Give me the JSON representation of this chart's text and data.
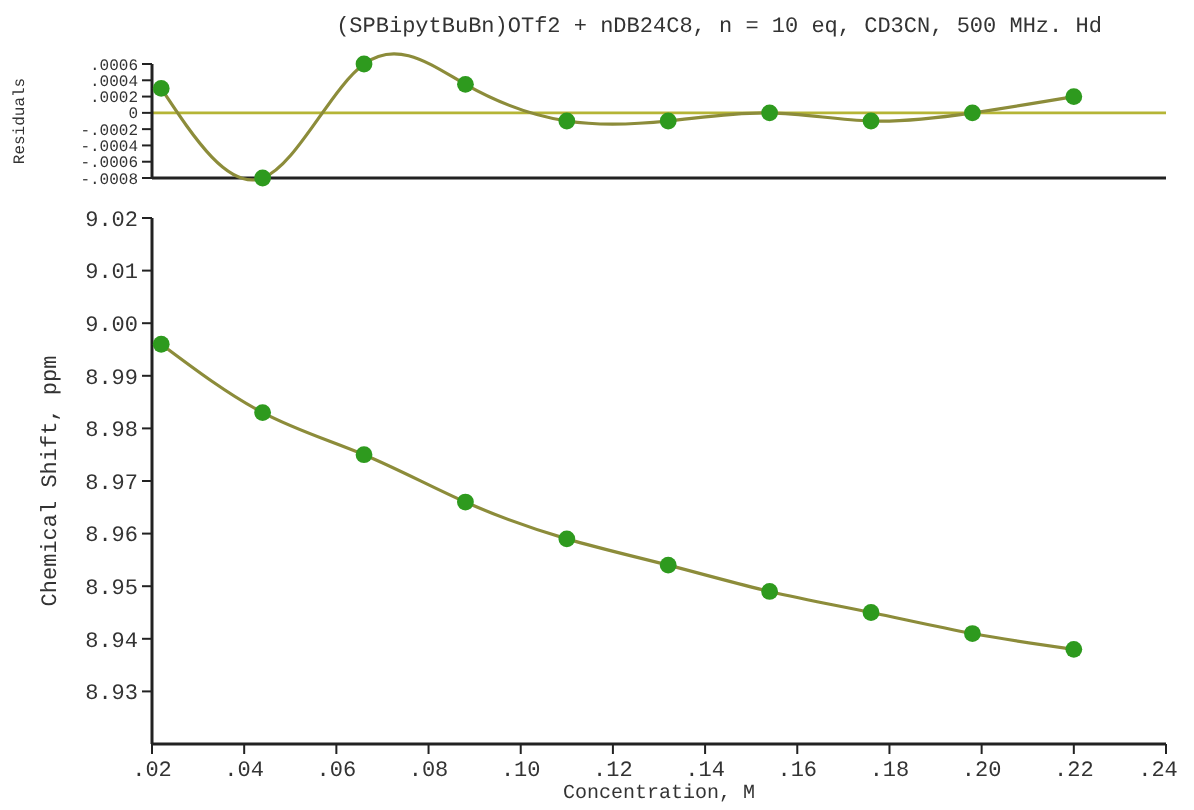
{
  "chart_data": [
    {
      "type": "line",
      "title": "(SPBipytBuBn)OTf2 + nDB24C8, n = 10 eq, CD3CN, 500 MHz. Hd",
      "ylabel": "Residuals",
      "xlim": [
        0.02,
        0.24
      ],
      "ylim": [
        -0.0008,
        0.0006
      ],
      "yticks": [
        {
          "value": -0.0008,
          "label": "-.0008"
        },
        {
          "value": -0.0006,
          "label": "-.0006"
        },
        {
          "value": -0.0004,
          "label": "-.0004"
        },
        {
          "value": -0.0002,
          "label": "-.0002"
        },
        {
          "value": 0,
          "label": "0"
        },
        {
          "value": 0.0002,
          "label": ".0002"
        },
        {
          "value": 0.0004,
          "label": ".0004"
        },
        {
          "value": 0.0006,
          "label": ".0006"
        }
      ],
      "tick_labels": "y",
      "grid": false,
      "x": [
        0.022,
        0.044,
        0.066,
        0.088,
        0.11,
        0.132,
        0.154,
        0.176,
        0.198,
        0.22
      ],
      "ref_lines": [
        {
          "axis": "y",
          "value": 0,
          "color": "#b5b536"
        }
      ],
      "series": [
        {
          "type": "line",
          "color": "#8c8c3a",
          "marker": "none",
          "values": [
            0.0003,
            -0.0008,
            0.0006,
            0.00035,
            -0.0001,
            -0.0001,
            0,
            -0.0001,
            0,
            0.0002
          ]
        },
        {
          "type": "scatter",
          "color": "#2e9a1e",
          "marker": "circle",
          "values": [
            0.0003,
            -0.0008,
            0.0006,
            0.00035,
            -0.0001,
            -0.0001,
            0,
            -0.0001,
            0,
            0.0002
          ]
        }
      ]
    },
    {
      "type": "line",
      "xlabel": "Concentration, M",
      "ylabel": "Chemical Shift, ppm",
      "xlim": [
        0.02,
        0.24
      ],
      "xticks": [
        {
          "value": 0.02,
          "label": ".02"
        },
        {
          "value": 0.04,
          "label": ".04"
        },
        {
          "value": 0.06,
          "label": ".06"
        },
        {
          "value": 0.08,
          "label": ".08"
        },
        {
          "value": 0.1,
          "label": ".10"
        },
        {
          "value": 0.12,
          "label": ".12"
        },
        {
          "value": 0.14,
          "label": ".14"
        },
        {
          "value": 0.16,
          "label": ".16"
        },
        {
          "value": 0.18,
          "label": ".18"
        },
        {
          "value": 0.2,
          "label": ".20"
        },
        {
          "value": 0.22,
          "label": ".22"
        },
        {
          "value": 0.24,
          "label": ".24"
        }
      ],
      "ylim": [
        8.92,
        9.02
      ],
      "yticks": [
        {
          "value": 8.93,
          "label": "8.93"
        },
        {
          "value": 8.94,
          "label": "8.94"
        },
        {
          "value": 8.95,
          "label": "8.95"
        },
        {
          "value": 8.96,
          "label": "8.96"
        },
        {
          "value": 8.97,
          "label": "8.97"
        },
        {
          "value": 8.98,
          "label": "8.98"
        },
        {
          "value": 8.99,
          "label": "8.99"
        },
        {
          "value": 9.0,
          "label": "9.00"
        },
        {
          "value": 9.01,
          "label": "9.01"
        },
        {
          "value": 9.02,
          "label": "9.02"
        }
      ],
      "grid": false,
      "x": [
        0.022,
        0.044,
        0.066,
        0.088,
        0.11,
        0.132,
        0.154,
        0.176,
        0.198,
        0.22
      ],
      "series": [
        {
          "type": "line",
          "color": "#8c8c3a",
          "marker": "none",
          "values": [
            8.996,
            8.983,
            8.975,
            8.966,
            8.959,
            8.954,
            8.949,
            8.945,
            8.941,
            8.938
          ]
        },
        {
          "type": "scatter",
          "color": "#2e9a1e",
          "marker": "circle",
          "values": [
            8.996,
            8.983,
            8.975,
            8.966,
            8.959,
            8.954,
            8.949,
            8.945,
            8.941,
            8.938
          ]
        }
      ]
    }
  ]
}
